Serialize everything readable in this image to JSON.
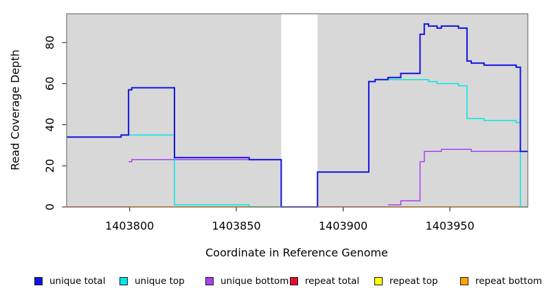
{
  "figure": {
    "kind": "step-line coverage plot",
    "panel_background": "#d8d8d8",
    "border_color": "#7d7d7d"
  },
  "chart_data": {
    "type": "line",
    "step": true,
    "title": "",
    "xlabel": "Coordinate in Reference Genome",
    "ylabel": "Read Coverage Depth",
    "xlim": [
      1403770.5,
      1403986.5
    ],
    "ylim": [
      0,
      94
    ],
    "x_ticks": [
      1403800,
      1403850,
      1403900,
      1403950
    ],
    "y_ticks": [
      0,
      20,
      40,
      60,
      80
    ],
    "grid": false,
    "legend_position": "bottom",
    "masked_region": {
      "x_start": 1403871,
      "x_end": 1403888,
      "fill": "#ffffff"
    },
    "series": [
      {
        "id": "repeat-top",
        "name": "repeat top",
        "color": "#FFFF00",
        "width": 1.5,
        "segments": [
          [
            [
              1403770.5,
              0
            ],
            [
              1403986.5,
              0
            ]
          ]
        ]
      },
      {
        "id": "repeat-total",
        "name": "repeat total",
        "color": "#E01030",
        "width": 1.5,
        "segments": [
          [
            [
              1403770.5,
              0
            ],
            [
              1403986.5,
              0
            ]
          ]
        ]
      },
      {
        "id": "repeat-bottom",
        "name": "repeat bottom",
        "color": "#FFA500",
        "width": 1.7,
        "segments": [
          [
            [
              1403800,
              0
            ],
            [
              1403871,
              0
            ]
          ],
          [
            [
              1403921,
              0
            ],
            [
              1403986.5,
              0
            ]
          ]
        ]
      },
      {
        "id": "unique-bottom",
        "name": "unique bottom",
        "color": "#A541F0",
        "width": 1.5,
        "segments": [
          [
            [
              1403799.5,
              22
            ],
            [
              1403801,
              23
            ],
            [
              1403871,
              23
            ],
            [
              1403871,
              0
            ]
          ],
          [
            [
              1403921,
              1
            ],
            [
              1403927,
              3
            ],
            [
              1403936,
              22
            ],
            [
              1403938,
              27
            ],
            [
              1403946,
              28
            ],
            [
              1403960,
              27
            ],
            [
              1403986.5,
              27
            ]
          ]
        ]
      },
      {
        "id": "unique-top",
        "name": "unique top",
        "color": "#00E6E6",
        "width": 1.5,
        "segments": [
          [
            [
              1403770.5,
              34
            ],
            [
              1403796,
              35
            ],
            [
              1403821,
              1
            ],
            [
              1403856,
              0
            ],
            [
              1403888,
              17
            ],
            [
              1403912,
              61
            ],
            [
              1403915,
              62
            ],
            [
              1403940,
              61
            ],
            [
              1403944,
              60
            ],
            [
              1403954,
              59
            ],
            [
              1403958,
              43
            ],
            [
              1403966,
              42
            ],
            [
              1403981,
              41
            ],
            [
              1403983,
              0
            ],
            [
              1403986.5,
              0
            ]
          ]
        ]
      },
      {
        "id": "unique-total",
        "name": "unique total",
        "color": "#1111E0",
        "width": 2,
        "segments": [
          [
            [
              1403770.5,
              34
            ],
            [
              1403796,
              35
            ],
            [
              1403799.5,
              57
            ],
            [
              1403801,
              58
            ],
            [
              1403821,
              24
            ],
            [
              1403856,
              23
            ],
            [
              1403871,
              0
            ],
            [
              1403888,
              17
            ],
            [
              1403912,
              61
            ],
            [
              1403915,
              62
            ],
            [
              1403921,
              63
            ],
            [
              1403927,
              65
            ],
            [
              1403936,
              84
            ],
            [
              1403938,
              89
            ],
            [
              1403940,
              88
            ],
            [
              1403944,
              87
            ],
            [
              1403946,
              88
            ],
            [
              1403954,
              87
            ],
            [
              1403958,
              71
            ],
            [
              1403960,
              70
            ],
            [
              1403966,
              69
            ],
            [
              1403981,
              68
            ],
            [
              1403983,
              27
            ],
            [
              1403986.5,
              27
            ]
          ]
        ]
      }
    ]
  },
  "legend": {
    "items": [
      {
        "label": "unique total",
        "color": "#1111E0"
      },
      {
        "label": "unique top",
        "color": "#00E6E6"
      },
      {
        "label": "unique bottom",
        "color": "#A541F0"
      },
      {
        "label": "repeat total",
        "color": "#E01030"
      },
      {
        "label": "repeat top",
        "color": "#FFFF00"
      },
      {
        "label": "repeat bottom",
        "color": "#FFA500"
      }
    ]
  }
}
